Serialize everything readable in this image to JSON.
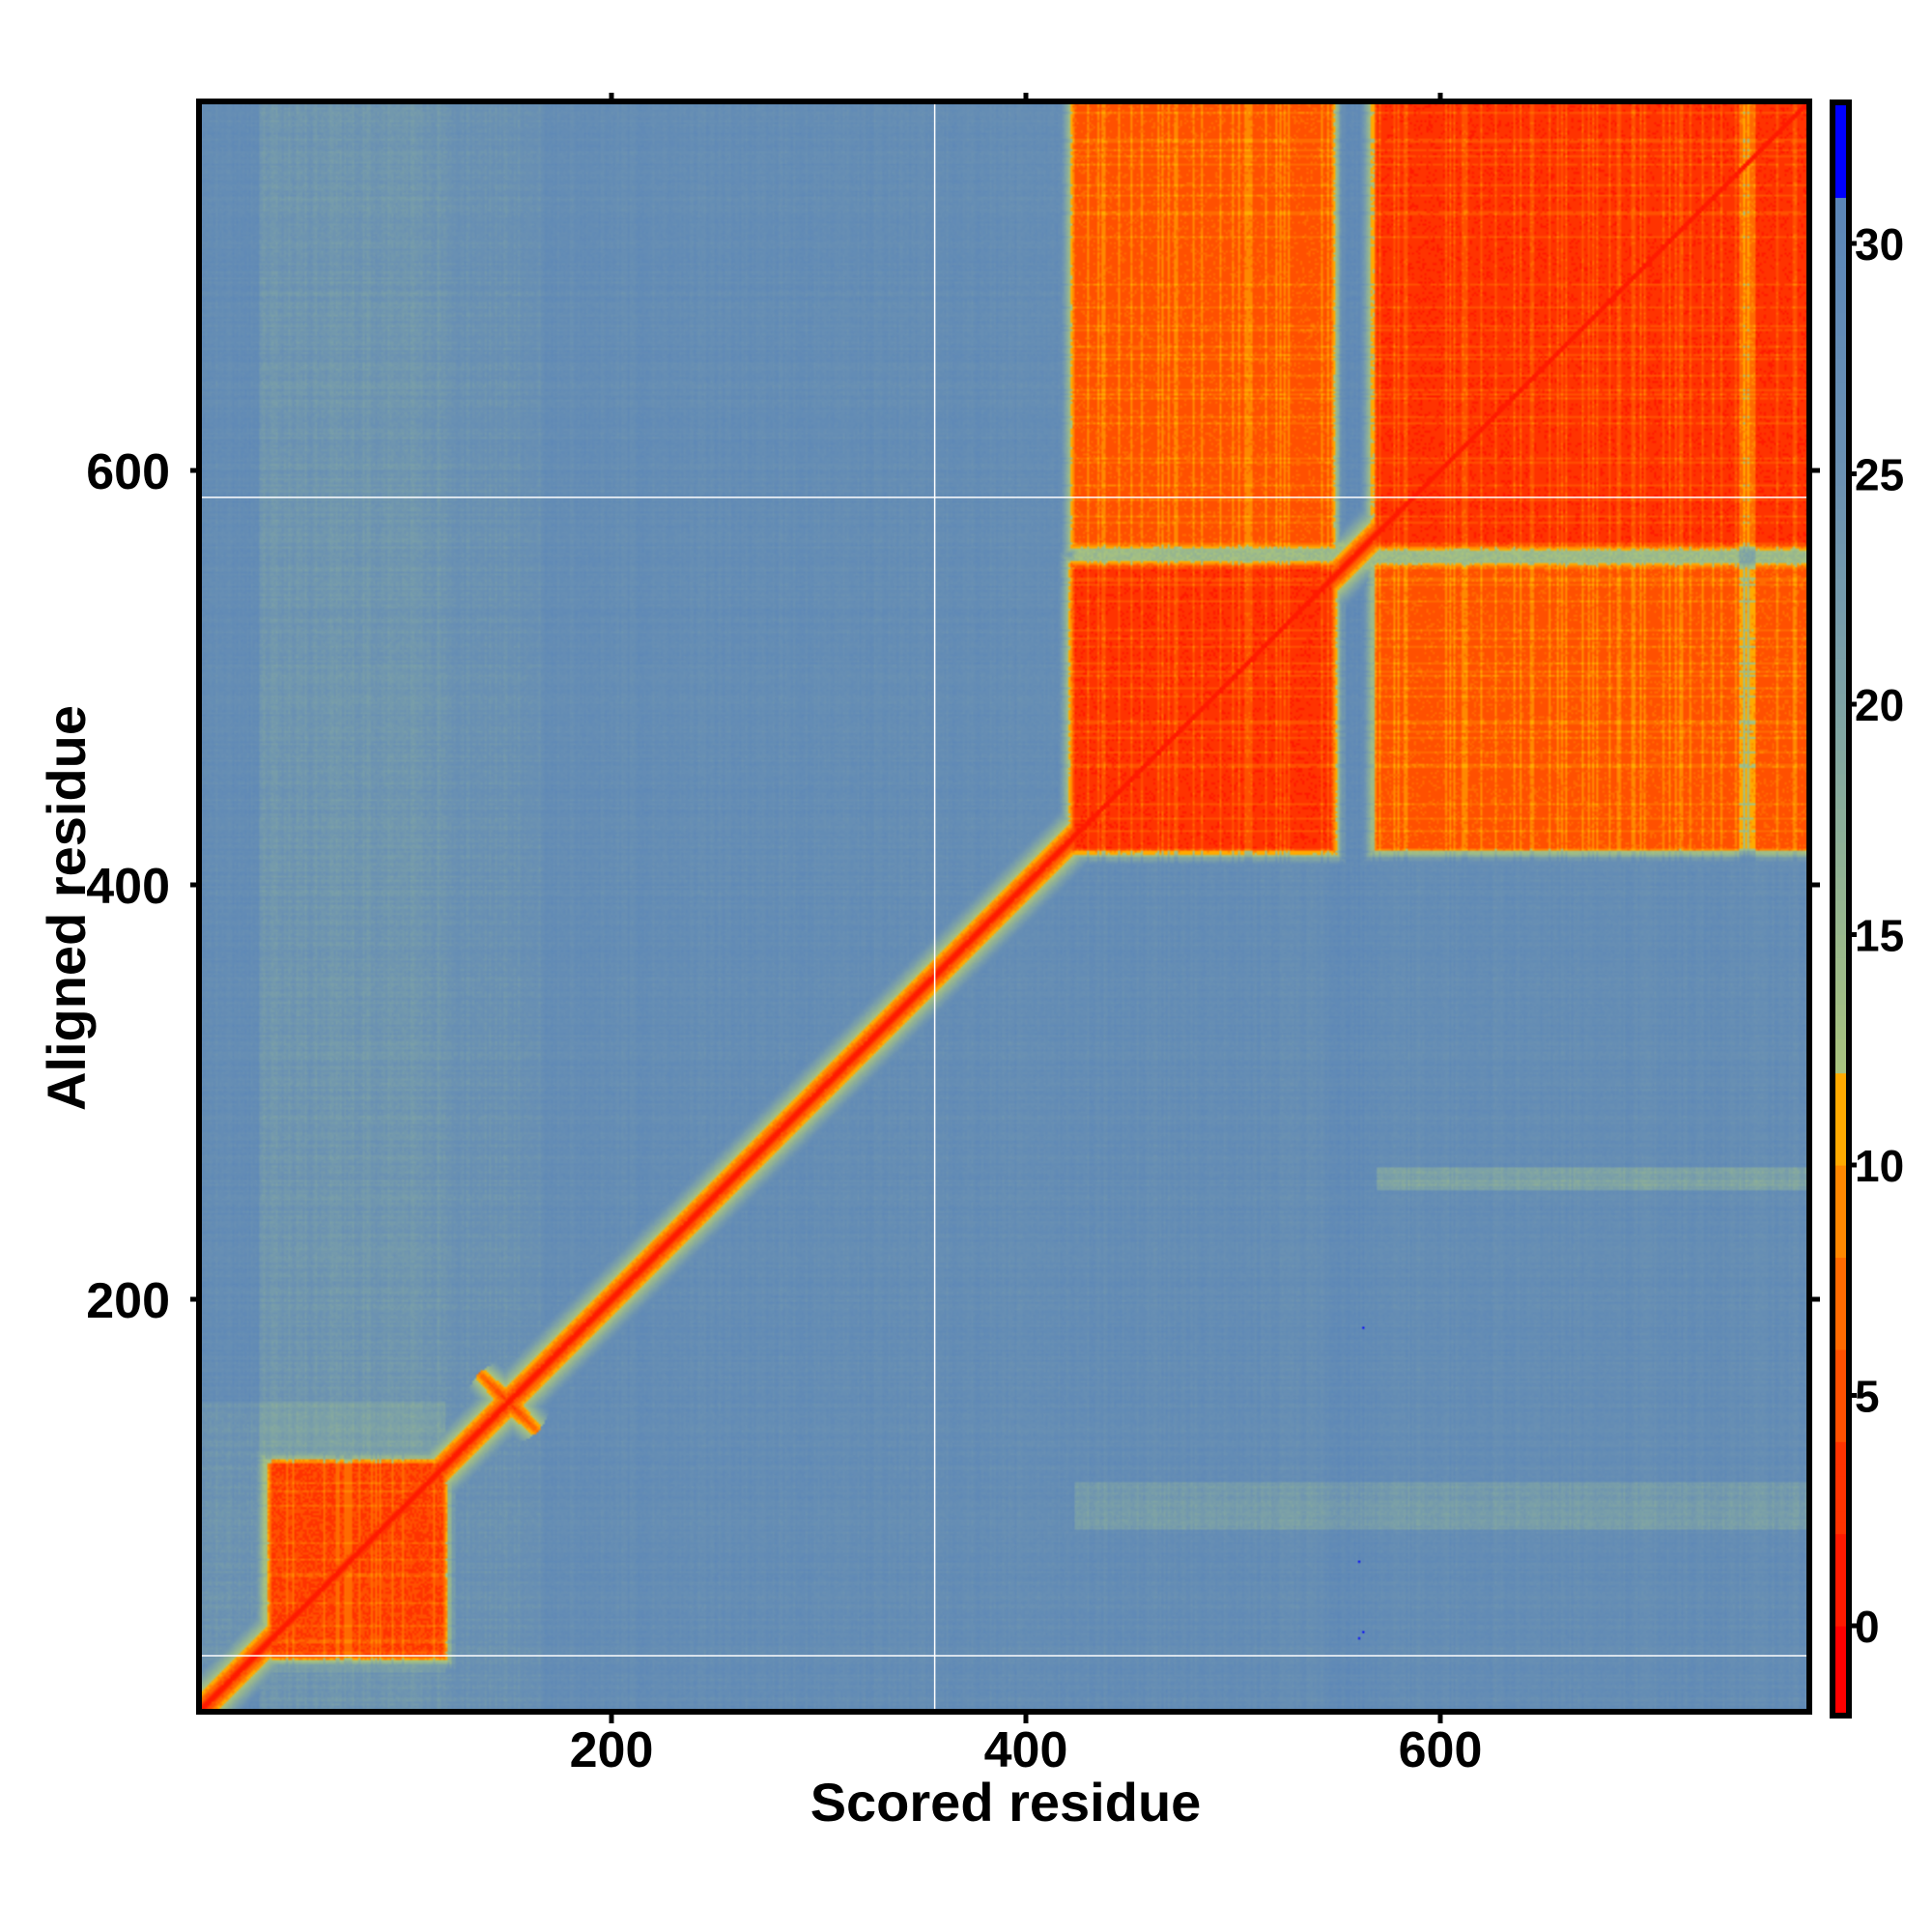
{
  "chart_data": {
    "type": "heatmap",
    "title": "",
    "xlabel": "Scored residue",
    "ylabel": "Aligned residue",
    "xlim": [
      1,
      778
    ],
    "ylim": [
      1,
      778
    ],
    "xticks": [
      200,
      400,
      600
    ],
    "yticks": [
      200,
      400,
      600
    ],
    "colorbar": {
      "range": [
        -2,
        33
      ],
      "ticks": [
        0,
        5,
        10,
        15,
        20,
        25,
        30
      ],
      "stops": [
        {
          "v": -2,
          "color": "#ff0000"
        },
        {
          "v": 0,
          "color": "#ff1a00"
        },
        {
          "v": 2,
          "color": "#ff3300"
        },
        {
          "v": 4,
          "color": "#ff5000"
        },
        {
          "v": 6,
          "color": "#ff6a00"
        },
        {
          "v": 8,
          "color": "#ff8800"
        },
        {
          "v": 10,
          "color": "#ffaa00"
        },
        {
          "v": 12,
          "color": "#a9c47e"
        },
        {
          "v": 20,
          "color": "#7ea3a6"
        },
        {
          "v": 25,
          "color": "#6a91b3"
        },
        {
          "v": 31,
          "color": "#5b86b8"
        },
        {
          "v": 31.01,
          "color": "#0000ff"
        }
      ]
    },
    "background_value": 27,
    "diagonal": {
      "value": 1,
      "ranges": [
        [
          1,
          425
        ],
        [
          540,
          575
        ]
      ]
    },
    "low_error_blocks": [
      {
        "x": [
          35,
          118
        ],
        "y": [
          28,
          120
        ],
        "value": 4
      },
      {
        "x": [
          424,
          547
        ],
        "y": [
          418,
          553
        ],
        "value": 2.5
      },
      {
        "x": [
          424,
          547
        ],
        "y": [
          565,
          778
        ],
        "value": 5.5
      },
      {
        "x": [
          570,
          778
        ],
        "y": [
          565,
          778
        ],
        "value": 2.5
      },
      {
        "x": [
          570,
          778
        ],
        "y": [
          418,
          553
        ],
        "value": 5.5
      },
      {
        "x": [
          424,
          778
        ],
        "y": [
          553,
          565
        ],
        "value": 12
      }
    ],
    "reference_lines": {
      "x": [
        356
      ],
      "y": [
        587,
        28
      ]
    }
  }
}
